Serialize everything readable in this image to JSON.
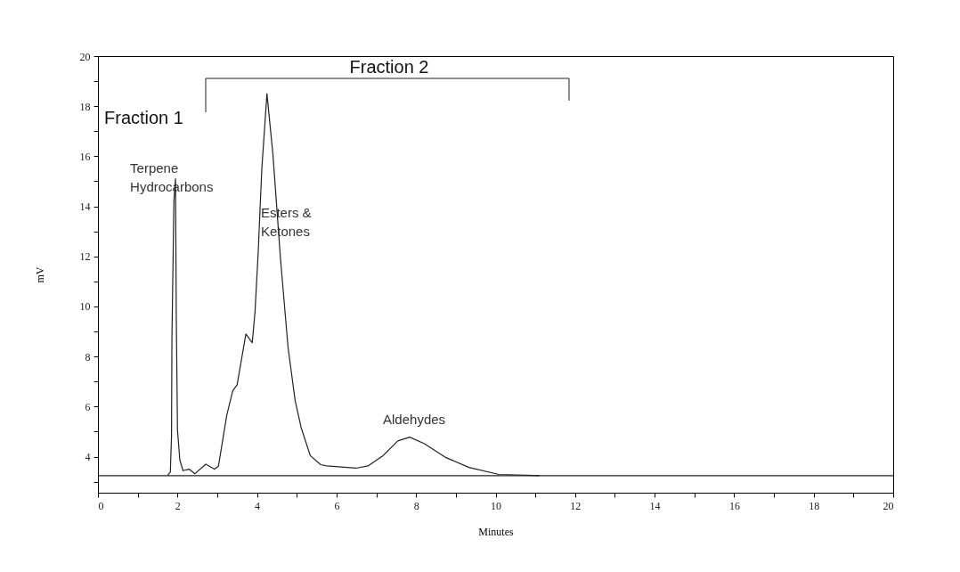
{
  "chart_data": {
    "type": "line",
    "xlabel": "Minutes",
    "ylabel": "mV",
    "xlim": [
      0,
      20
    ],
    "ylim": [
      2.56,
      20
    ],
    "xticks": [
      0,
      {
        "value": 1,
        "label": null
      },
      2,
      {
        "value": 3,
        "label": null
      },
      4,
      {
        "value": 5,
        "label": null
      },
      6,
      {
        "value": 7,
        "label": null
      },
      8,
      {
        "value": 9,
        "label": null
      },
      10,
      {
        "value": 11,
        "label": null
      },
      12,
      {
        "value": 13,
        "label": null
      },
      14,
      {
        "value": 15,
        "label": null
      },
      16,
      {
        "value": 17,
        "label": null
      },
      18,
      {
        "value": 19,
        "label": null
      },
      20
    ],
    "yticks": [
      {
        "value": 3,
        "label": null
      },
      4,
      {
        "value": 5,
        "label": null
      },
      6,
      {
        "value": 7,
        "label": null
      },
      8,
      {
        "value": 9,
        "label": null
      },
      10,
      {
        "value": 11,
        "label": null
      },
      12,
      {
        "value": 13,
        "label": null
      },
      14,
      {
        "value": 15,
        "label": null
      },
      16,
      {
        "value": 17,
        "label": null
      },
      18,
      {
        "value": 19,
        "label": null
      },
      20
    ],
    "x": [
      1.75,
      1.82,
      1.85,
      1.86,
      1.91,
      1.95,
      1.97,
      2.0,
      2.06,
      2.14,
      2.29,
      2.44,
      2.71,
      2.93,
      3.03,
      3.24,
      3.39,
      3.5,
      3.72,
      3.88,
      3.95,
      4.03,
      4.12,
      4.25,
      4.4,
      4.59,
      4.78,
      4.96,
      5.11,
      5.34,
      5.6,
      5.75,
      6.49,
      6.79,
      7.17,
      7.54,
      7.84,
      8.21,
      8.73,
      9.33,
      10.08,
      10.97,
      11.1
    ],
    "series": [
      {
        "color": "#222222",
        "values": [
          3.25,
          3.38,
          4.82,
          8.67,
          14.2,
          15.1,
          9.63,
          5.06,
          3.86,
          3.44,
          3.5,
          3.32,
          3.7,
          3.5,
          3.62,
          5.66,
          6.63,
          6.87,
          8.9,
          8.55,
          9.79,
          12.17,
          15.48,
          18.5,
          16.08,
          11.92,
          8.37,
          6.23,
          5.16,
          4.04,
          3.68,
          3.63,
          3.54,
          3.63,
          4.04,
          4.63,
          4.78,
          4.52,
          3.98,
          3.57,
          3.29,
          3.25,
          3.24
        ]
      }
    ],
    "ref_lines": [
      {
        "axis": "y",
        "value": 3.24,
        "color": "#222222"
      }
    ],
    "annotations": [
      "Fraction 1",
      "Fraction 2",
      {
        "text": "Terpene\nHydrocarbons",
        "x": 1.95,
        "y": 15.1
      },
      {
        "text": "Esters &\nKetones",
        "x": 4.5,
        "y": 14
      },
      {
        "text": "Aldehydes",
        "x": 7.84,
        "y": 4.78
      }
    ],
    "grid": false
  }
}
